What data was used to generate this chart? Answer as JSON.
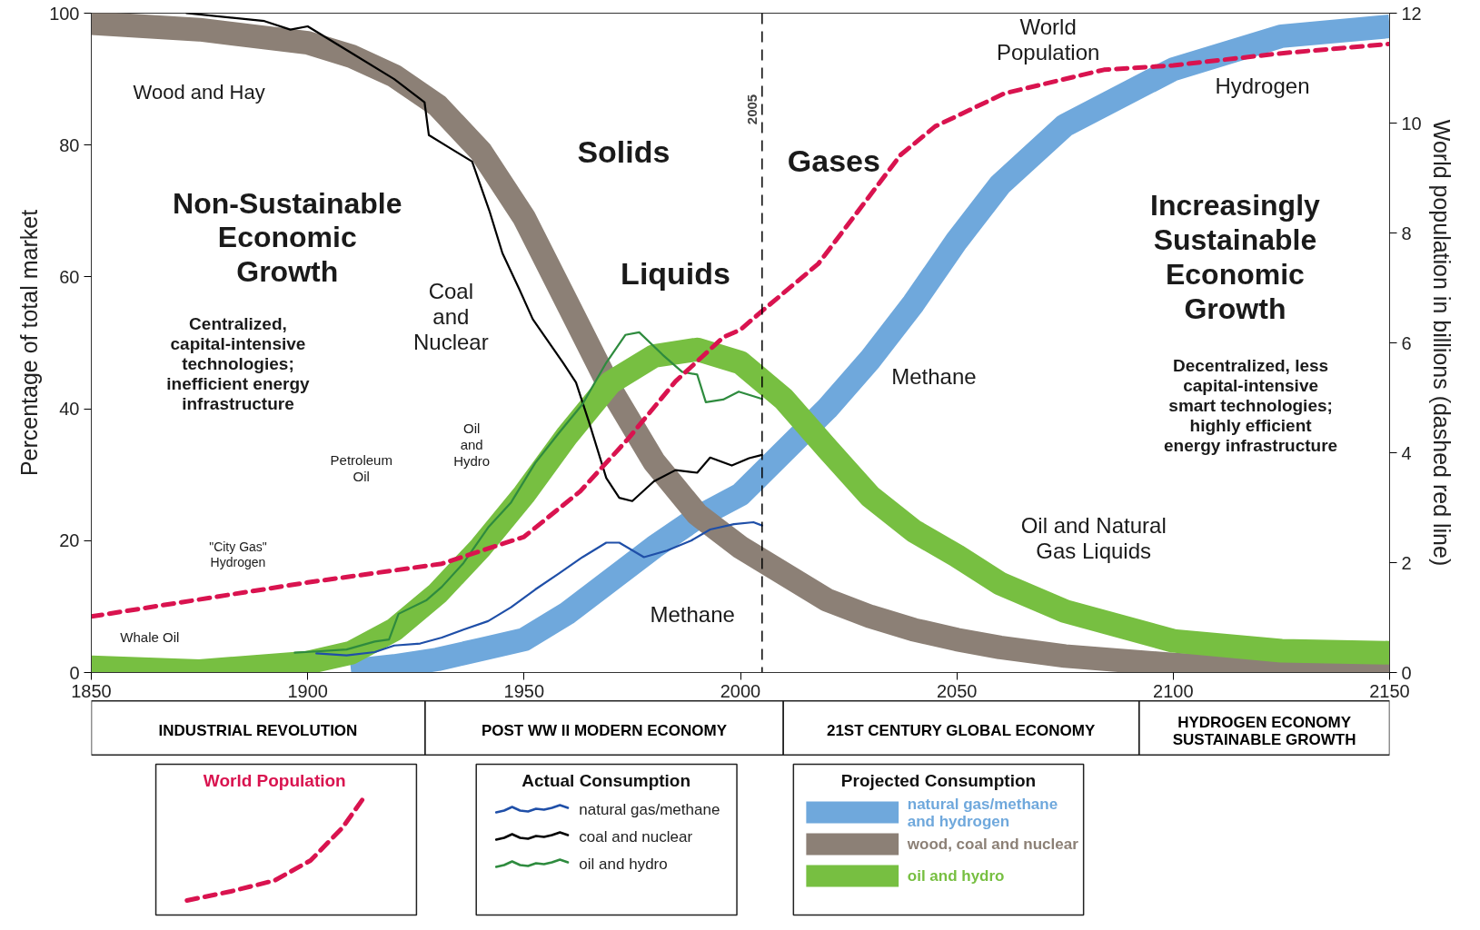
{
  "chart_data": {
    "type": "line",
    "xlim": [
      1850,
      2150
    ],
    "xticks": [
      1850,
      1900,
      1950,
      2000,
      2050,
      2100,
      2150
    ],
    "ylim": [
      0,
      100
    ],
    "yticks": [
      0,
      20,
      40,
      60,
      80,
      100
    ],
    "y2lim": [
      0,
      12
    ],
    "y2ticks": [
      0,
      2,
      4,
      6,
      8,
      10,
      12
    ],
    "ylabel": "Percentage of total market",
    "y2label": "World population in billions (dashed red line)",
    "grid": false,
    "legend": "bottom",
    "line_style": "solid",
    "x": [
      1850,
      1875,
      1900,
      1910,
      1920,
      1930,
      1940,
      1950,
      1960,
      1970,
      1980,
      1990,
      2000,
      2010,
      2020,
      2030,
      2040,
      2050,
      2060,
      2075,
      2100,
      2125,
      2150
    ],
    "series": [
      {
        "name": "natural gas/methane\nand hydrogen",
        "color": "#6fa8dc",
        "values": [
          null,
          null,
          null,
          0.3,
          1,
          2,
          3.5,
          5,
          9,
          14,
          19,
          23.5,
          27,
          33.5,
          40,
          47.5,
          56,
          65.5,
          74,
          83,
          91.5,
          96.5,
          98
        ]
      },
      {
        "name": "wood, coal and nuclear",
        "color": "#8c8076",
        "values": [
          98.5,
          97.5,
          95.5,
          93.5,
          90.5,
          86,
          79,
          69,
          56,
          43,
          32,
          24,
          19,
          15,
          11,
          8.5,
          6.5,
          5,
          3.8,
          2.5,
          1.2,
          0.6,
          0.4
        ]
      },
      {
        "name": "oil and hydro",
        "color": "#77bf41",
        "values": [
          0.8,
          0.2,
          1.5,
          3,
          6.5,
          12,
          19,
          27,
          36,
          44,
          48,
          49,
          47,
          41.5,
          34,
          26.7,
          21.5,
          17.7,
          13.5,
          9.3,
          4.8,
          3.3,
          3
        ]
      },
      {
        "name": "natural gas/methane",
        "color": "#1f4fa8",
        "x": [
          1902,
          1909,
          1915.5,
          1920,
          1926,
          1931,
          1936,
          1941.7,
          1947,
          1952.6,
          1958,
          1963.5,
          1969,
          1972,
          1977.7,
          1983,
          1988.6,
          1993,
          1998.5,
          2003,
          2005
        ],
        "values": [
          2.9,
          2.6,
          3.1,
          4.1,
          4.4,
          5.3,
          6.5,
          7.8,
          9.9,
          12.6,
          15,
          17.5,
          19.7,
          19.7,
          17.5,
          18.5,
          20,
          21.7,
          22.5,
          22.8,
          22.3
        ]
      },
      {
        "name": "coal and nuclear",
        "color": "#000000",
        "x": [
          1872,
          1890,
          1896,
          1900,
          1910,
          1920,
          1927,
          1928,
          1933,
          1938,
          1942,
          1945,
          1949,
          1952,
          1959,
          1962,
          1965,
          1969,
          1972,
          1975,
          1980,
          1985,
          1990,
          1993,
          1998,
          2002,
          2005
        ],
        "values": [
          100,
          98.8,
          97.5,
          98,
          94,
          90,
          86.5,
          81.5,
          79.5,
          77.5,
          70,
          63.6,
          58,
          53.6,
          47,
          44,
          38,
          29.5,
          26.5,
          26,
          29,
          30.7,
          30.3,
          32.6,
          31.4,
          32.5,
          33
        ]
      },
      {
        "name": "oil and hydro",
        "color": "#2e8b3e",
        "x": [
          1897,
          1902,
          1909,
          1915.5,
          1918.8,
          1921,
          1927.5,
          1931,
          1936,
          1941.7,
          1947,
          1952.6,
          1958,
          1963.5,
          1969,
          1973.4,
          1976.6,
          1982,
          1986.5,
          1990,
          1992,
          1996,
          1999.6,
          2003,
          2005
        ],
        "values": [
          3,
          3.2,
          3.5,
          4.7,
          5,
          8.9,
          11,
          13,
          16.6,
          22,
          25.8,
          31.8,
          36.3,
          40.7,
          47,
          51.2,
          51.6,
          48.2,
          45.6,
          45.2,
          41,
          41.4,
          42.6,
          41.9,
          41.5
        ]
      },
      {
        "name": "World Population",
        "color": "#d9134f",
        "axis": "y2",
        "line_style": "dashed",
        "x": [
          1850,
          1900,
          1931,
          1950,
          1963,
          1974,
          1985,
          1996,
          2000,
          2005,
          2018,
          2037,
          2045,
          2061,
          2084,
          2100,
          2125,
          2150
        ],
        "values": [
          1.02,
          1.64,
          1.98,
          2.47,
          3.3,
          4.25,
          5.3,
          6.1,
          6.24,
          6.58,
          7.44,
          9.42,
          9.94,
          10.54,
          10.97,
          11.05,
          11.27,
          11.44
        ]
      }
    ],
    "ref_lines": [
      {
        "axis": "x",
        "value": 2005,
        "label": "2005",
        "color": "#000000",
        "line_style": "dashed"
      }
    ],
    "annotations": [
      "Wood and Hay",
      "Solids",
      "Non-Sustainable\nEconomic\nGrowth",
      "Centralized,\ncapital-intensive\ntechnologies;\ninefficient energy\ninfrastructure",
      "Coal\nand\nNuclear",
      "Liquids",
      "Oil\nand\nHydro",
      "Petroleum\nOil",
      "\"City Gas\"\nHydrogen",
      "Whale Oil",
      "Methane",
      "Methane",
      "Gases",
      "World\nPopulation",
      "Hydrogen",
      "Increasingly\nSustainable\nEconomic\nGrowth",
      "Decentralized, less\ncapital-intensive\nsmart technologies;\nhighly efficient\nenergy infrastructure",
      "Oil and Natural\nGas Liquids",
      "INDUSTRIAL REVOLUTION",
      "POST WW II MODERN ECONOMY",
      "21ST CENTURY GLOBAL ECONOMY",
      "HYDROGEN ECONOMY\nSUSTAINABLE GROWTH",
      "Actual Consumption",
      "Projected Consumption"
    ]
  }
}
